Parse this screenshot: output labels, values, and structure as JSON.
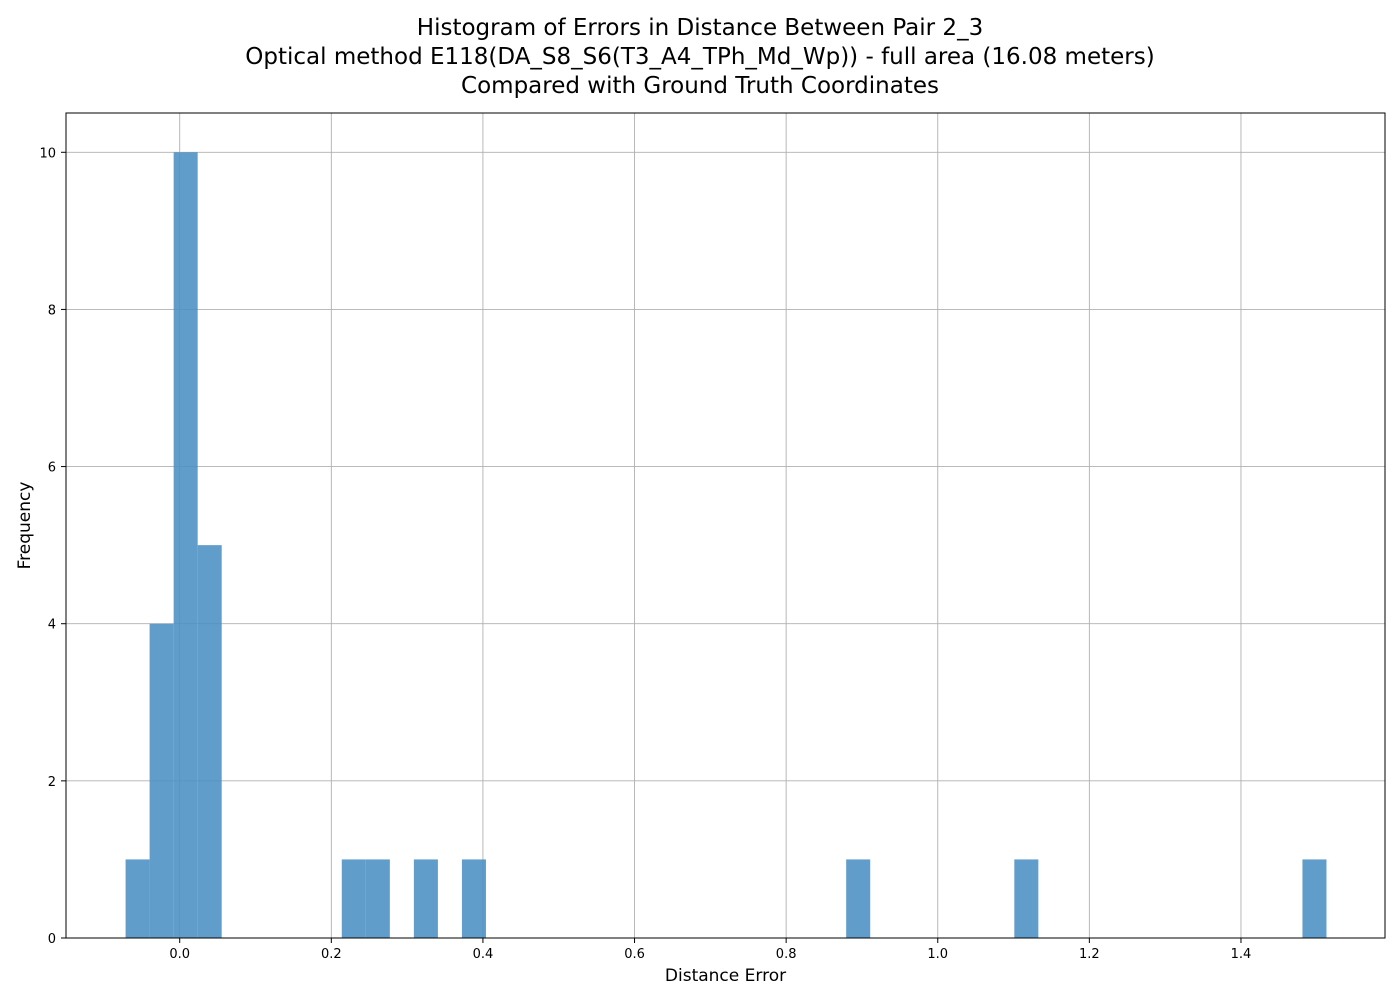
{
  "chart_data": {
    "type": "bar",
    "title_lines": [
      "Histogram of Errors in Distance Between Pair 2_3",
      "Optical method E118(DA_S8_S6(T3_A4_TPh_Md_Wp)) - full area (16.08 meters)",
      "Compared with Ground Truth Coordinates"
    ],
    "xlabel": "Distance Error",
    "ylabel": "Frequency",
    "xlim": [
      -0.15,
      1.59
    ],
    "ylim": [
      0,
      10.5
    ],
    "grid": true,
    "bar_color": "#4a90c4",
    "bin_width": 0.0317,
    "bins": [
      {
        "left": -0.0714,
        "count": 1
      },
      {
        "left": -0.0397,
        "count": 4
      },
      {
        "left": -0.008,
        "count": 10
      },
      {
        "left": 0.0237,
        "count": 5
      },
      {
        "left": 0.2138,
        "count": 1
      },
      {
        "left": 0.2455,
        "count": 1
      },
      {
        "left": 0.3089,
        "count": 1
      },
      {
        "left": 0.3723,
        "count": 1
      },
      {
        "left": 0.8792,
        "count": 1
      },
      {
        "left": 1.101,
        "count": 1
      },
      {
        "left": 1.4811,
        "count": 1
      }
    ],
    "xticks": [
      0.0,
      0.2,
      0.4,
      0.6,
      0.8,
      1.0,
      1.2,
      1.4
    ],
    "xtick_labels": [
      "0.0",
      "0.2",
      "0.4",
      "0.6",
      "0.8",
      "1.0",
      "1.2",
      "1.4"
    ],
    "yticks": [
      0,
      2,
      4,
      6,
      8,
      10
    ],
    "ytick_labels": [
      "0",
      "2",
      "4",
      "6",
      "8",
      "10"
    ]
  }
}
